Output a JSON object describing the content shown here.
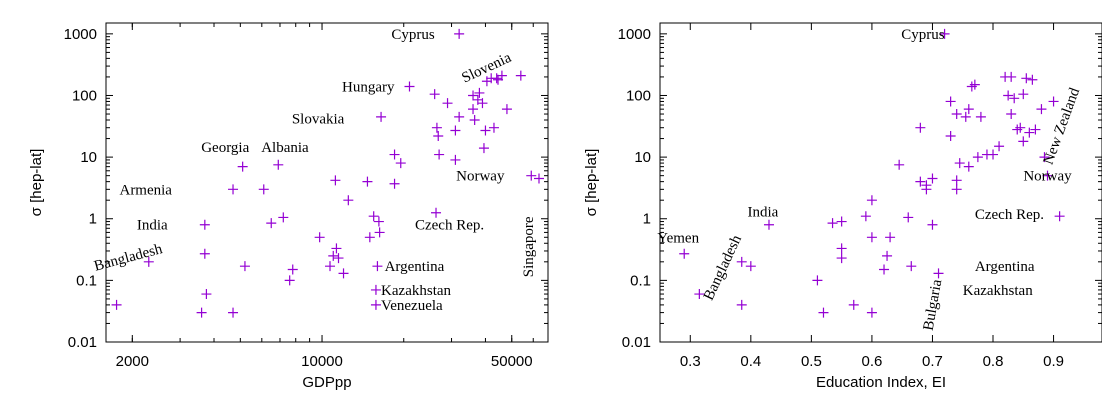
{
  "chart_data": [
    {
      "type": "scatter",
      "xlabel": "GDPpp",
      "ylabel": "σ [hep-lat]",
      "xscale": "log",
      "yscale": "log",
      "xlim": [
        1600,
        68000
      ],
      "ylim": [
        0.01,
        1500
      ],
      "xticks": [
        {
          "value": 2000,
          "label": "2000"
        },
        {
          "value": 10000,
          "label": "10000"
        },
        {
          "value": 50000,
          "label": "50000"
        }
      ],
      "yticks": [
        {
          "value": 0.01,
          "label": "0.01"
        },
        {
          "value": 0.1,
          "label": "0.1"
        },
        {
          "value": 1,
          "label": "1"
        },
        {
          "value": 10,
          "label": "10"
        },
        {
          "value": 100,
          "label": "100"
        },
        {
          "value": 1000,
          "label": "1000"
        }
      ],
      "color": "#9400d3",
      "points": [
        [
          1750,
          0.04
        ],
        [
          2300,
          0.2
        ],
        [
          3600,
          0.03
        ],
        [
          3700,
          0.8
        ],
        [
          3700,
          0.27
        ],
        [
          3750,
          0.06
        ],
        [
          4700,
          0.03
        ],
        [
          4700,
          3.0
        ],
        [
          5100,
          7.0
        ],
        [
          5200,
          0.17
        ],
        [
          6100,
          3.0
        ],
        [
          6500,
          0.85
        ],
        [
          6900,
          7.5
        ],
        [
          7200,
          1.05
        ],
        [
          7600,
          0.1
        ],
        [
          7800,
          0.15
        ],
        [
          9800,
          0.5
        ],
        [
          10700,
          0.17
        ],
        [
          11000,
          0.25
        ],
        [
          11200,
          4.2
        ],
        [
          11300,
          0.33
        ],
        [
          11500,
          0.23
        ],
        [
          12000,
          0.13
        ],
        [
          12500,
          2.0
        ],
        [
          14700,
          4.0
        ],
        [
          15000,
          0.5
        ],
        [
          15500,
          1.1
        ],
        [
          16000,
          0.17
        ],
        [
          16200,
          0.9
        ],
        [
          16300,
          0.6
        ],
        [
          15800,
          0.04
        ],
        [
          15800,
          0.07
        ],
        [
          18500,
          3.7
        ],
        [
          18500,
          11.0
        ],
        [
          19500,
          8.0
        ],
        [
          16500,
          45.0
        ],
        [
          21000,
          140.0
        ],
        [
          26000,
          105.0
        ],
        [
          26500,
          30.0
        ],
        [
          26800,
          22.0
        ],
        [
          27000,
          11.0
        ],
        [
          26300,
          1.25
        ],
        [
          29000,
          75.0
        ],
        [
          31000,
          9.0
        ],
        [
          31000,
          27.0
        ],
        [
          32000,
          1000.0
        ],
        [
          32000,
          45.0
        ],
        [
          36000,
          100.0
        ],
        [
          36000,
          60.0
        ],
        [
          36500,
          40.0
        ],
        [
          37500,
          85.0
        ],
        [
          38000,
          110.0
        ],
        [
          39000,
          75.0
        ],
        [
          39500,
          14.0
        ],
        [
          40000,
          27.0
        ],
        [
          40500,
          170.0
        ],
        [
          42000,
          190.0
        ],
        [
          43000,
          30.0
        ],
        [
          44000,
          190.0
        ],
        [
          44500,
          180.0
        ],
        [
          46000,
          210.0
        ],
        [
          48000,
          60.0
        ],
        [
          54000,
          210.0
        ],
        [
          59000,
          5.0
        ],
        [
          63000,
          4.5
        ]
      ],
      "annotations": [
        {
          "text": "Cyprus",
          "x": 26000,
          "y": 1000
        },
        {
          "text": "Hungary",
          "x": 18500,
          "y": 140
        },
        {
          "text": "Slovenia",
          "x": 33500,
          "y": 160
        },
        {
          "text": "Slovakia",
          "x": 12500,
          "y": 42
        },
        {
          "text": "Georgia",
          "x": 4400,
          "y": 12
        },
        {
          "text": "Albania",
          "x": 7300,
          "y": 12
        },
        {
          "text": "Armenia",
          "x": 2800,
          "y": 3
        },
        {
          "text": "India",
          "x": 2700,
          "y": 0.8
        },
        {
          "text": "Bangladesh",
          "x": 1950,
          "y": 0.2
        },
        {
          "text": "Czech Rep.",
          "x": 22000,
          "y": 0.8
        },
        {
          "text": "Norway",
          "x": 47000,
          "y": 5
        },
        {
          "text": "Singapore",
          "x": 60000,
          "y": 0.35
        },
        {
          "text": "Argentina",
          "x": 17000,
          "y": 0.17
        },
        {
          "text": "Kazakhstan",
          "x": 16500,
          "y": 0.07
        },
        {
          "text": "Venezuela",
          "x": 16500,
          "y": 0.04
        }
      ]
    },
    {
      "type": "scatter",
      "xlabel": "Education Index,  EI",
      "ylabel": "σ [hep-lat]",
      "xscale": "linear",
      "yscale": "log",
      "xlim": [
        0.25,
        0.98
      ],
      "ylim": [
        0.01,
        1500
      ],
      "xticks": [
        {
          "value": 0.3,
          "label": "0.3"
        },
        {
          "value": 0.4,
          "label": "0.4"
        },
        {
          "value": 0.5,
          "label": "0.5"
        },
        {
          "value": 0.6,
          "label": "0.6"
        },
        {
          "value": 0.7,
          "label": "0.7"
        },
        {
          "value": 0.8,
          "label": "0.8"
        },
        {
          "value": 0.9,
          "label": "0.9"
        }
      ],
      "yticks": [
        {
          "value": 0.01,
          "label": "0.01"
        },
        {
          "value": 0.1,
          "label": "0.1"
        },
        {
          "value": 1,
          "label": "1"
        },
        {
          "value": 10,
          "label": "10"
        },
        {
          "value": 100,
          "label": "100"
        },
        {
          "value": 1000,
          "label": "1000"
        }
      ],
      "color": "#9400d3",
      "points": [
        [
          0.29,
          0.27
        ],
        [
          0.315,
          0.06
        ],
        [
          0.385,
          0.2
        ],
        [
          0.385,
          0.04
        ],
        [
          0.4,
          0.17
        ],
        [
          0.43,
          0.8
        ],
        [
          0.51,
          0.1
        ],
        [
          0.52,
          0.03
        ],
        [
          0.535,
          0.85
        ],
        [
          0.55,
          0.9
        ],
        [
          0.55,
          0.33
        ],
        [
          0.55,
          0.23
        ],
        [
          0.57,
          0.04
        ],
        [
          0.59,
          1.1
        ],
        [
          0.6,
          2.0
        ],
        [
          0.6,
          0.5
        ],
        [
          0.6,
          0.03
        ],
        [
          0.62,
          0.15
        ],
        [
          0.625,
          0.25
        ],
        [
          0.63,
          0.5
        ],
        [
          0.645,
          7.5
        ],
        [
          0.66,
          1.05
        ],
        [
          0.665,
          0.17
        ],
        [
          0.68,
          30.0
        ],
        [
          0.68,
          4.0
        ],
        [
          0.69,
          3.0
        ],
        [
          0.69,
          3.5
        ],
        [
          0.7,
          4.5
        ],
        [
          0.7,
          0.8
        ],
        [
          0.71,
          0.13
        ],
        [
          0.72,
          1000.0
        ],
        [
          0.73,
          80.0
        ],
        [
          0.73,
          22.0
        ],
        [
          0.74,
          50.0
        ],
        [
          0.74,
          4.2
        ],
        [
          0.74,
          3.0
        ],
        [
          0.745,
          8.0
        ],
        [
          0.755,
          45.0
        ],
        [
          0.76,
          60.0
        ],
        [
          0.76,
          7.0
        ],
        [
          0.765,
          140.0
        ],
        [
          0.77,
          150.0
        ],
        [
          0.775,
          10.0
        ],
        [
          0.78,
          45.0
        ],
        [
          0.79,
          11.0
        ],
        [
          0.8,
          11.0
        ],
        [
          0.81,
          15.0
        ],
        [
          0.82,
          200.0
        ],
        [
          0.825,
          100.0
        ],
        [
          0.83,
          200.0
        ],
        [
          0.83,
          50.0
        ],
        [
          0.835,
          90.0
        ],
        [
          0.84,
          28.0
        ],
        [
          0.845,
          30.0
        ],
        [
          0.85,
          105.0
        ],
        [
          0.85,
          18.0
        ],
        [
          0.855,
          190.0
        ],
        [
          0.86,
          25.0
        ],
        [
          0.865,
          180.0
        ],
        [
          0.87,
          28.0
        ],
        [
          0.88,
          60.0
        ],
        [
          0.885,
          10.0
        ],
        [
          0.89,
          5.0
        ],
        [
          0.9,
          80.0
        ],
        [
          0.91,
          1.1
        ]
      ],
      "annotations": [
        {
          "text": "Cyprus",
          "x": 0.72,
          "y": 1000
        },
        {
          "text": "New Zealand",
          "x": 0.92,
          "y": 30
        },
        {
          "text": "Norway",
          "x": 0.89,
          "y": 5
        },
        {
          "text": "Czech Rep.",
          "x": 0.77,
          "y": 1.2
        },
        {
          "text": "India",
          "x": 0.42,
          "y": 1.3
        },
        {
          "text": "Yemen",
          "x": 0.28,
          "y": 0.5
        },
        {
          "text": "Bangladesh",
          "x": 0.36,
          "y": 0.15
        },
        {
          "text": "Bulgaria",
          "x": 0.7,
          "y": 0.015
        },
        {
          "text": "Argentina",
          "x": 0.77,
          "y": 0.17
        },
        {
          "text": "Kazakhstan",
          "x": 0.75,
          "y": 0.07
        }
      ]
    }
  ]
}
